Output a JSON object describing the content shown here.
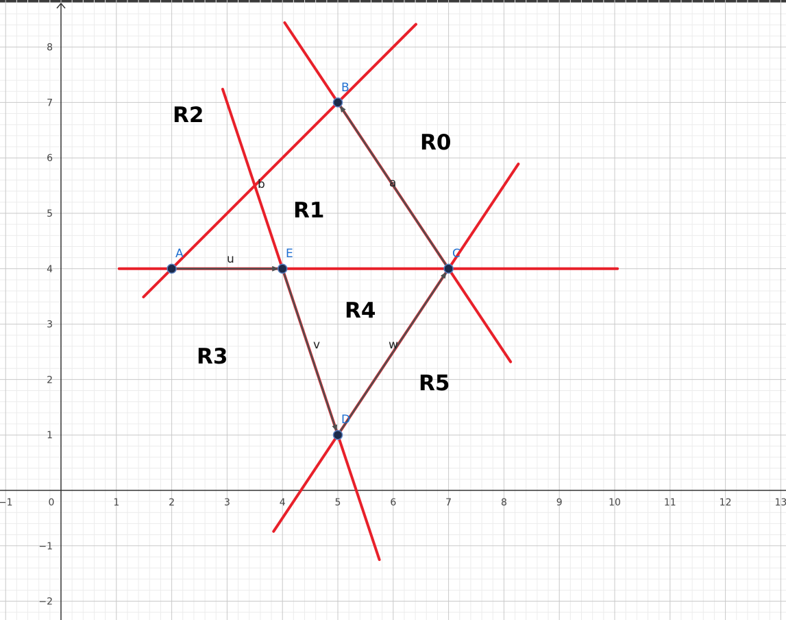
{
  "axes": {
    "x_ticks": [
      "−1",
      "0",
      "1",
      "2",
      "3",
      "4",
      "5",
      "6",
      "7",
      "8",
      "9",
      "10",
      "11",
      "12",
      "13"
    ],
    "y_ticks": [
      "8",
      "7",
      "6",
      "5",
      "4",
      "3",
      "2",
      "1",
      "−1",
      "−2"
    ]
  },
  "points": [
    {
      "name": "A",
      "x": 2,
      "y": 4
    },
    {
      "name": "B",
      "x": 5,
      "y": 7
    },
    {
      "name": "C",
      "x": 7,
      "y": 4
    },
    {
      "name": "D",
      "x": 5,
      "y": 1
    },
    {
      "name": "E",
      "x": 4,
      "y": 4
    }
  ],
  "vectors": [
    {
      "name": "u",
      "from": "A",
      "to": "E"
    },
    {
      "name": "v",
      "from": "E",
      "to": "D"
    },
    {
      "name": "w",
      "from": "D",
      "to": "C"
    },
    {
      "name": "a",
      "from": "C",
      "to": "B"
    }
  ],
  "segment_labels": [
    {
      "name": "b"
    }
  ],
  "red_lines": [
    {
      "through": "A-B"
    },
    {
      "through": "B-C"
    },
    {
      "through": "A-C"
    },
    {
      "through": "E-D"
    },
    {
      "through": "D-C"
    },
    {
      "through": "C-D-ext"
    }
  ],
  "regions": [
    {
      "label": "R0"
    },
    {
      "label": "R1"
    },
    {
      "label": "R2"
    },
    {
      "label": "R3"
    },
    {
      "label": "R4"
    },
    {
      "label": "R5"
    }
  ],
  "colors": {
    "line_red": "#e8202a",
    "vector_gray": "#505050",
    "point_fill": "#1b2a4a",
    "point_label": "#1f6fd1",
    "grid_major": "#c8c8c8",
    "grid_minor": "#ececec",
    "axis": "#333333"
  }
}
